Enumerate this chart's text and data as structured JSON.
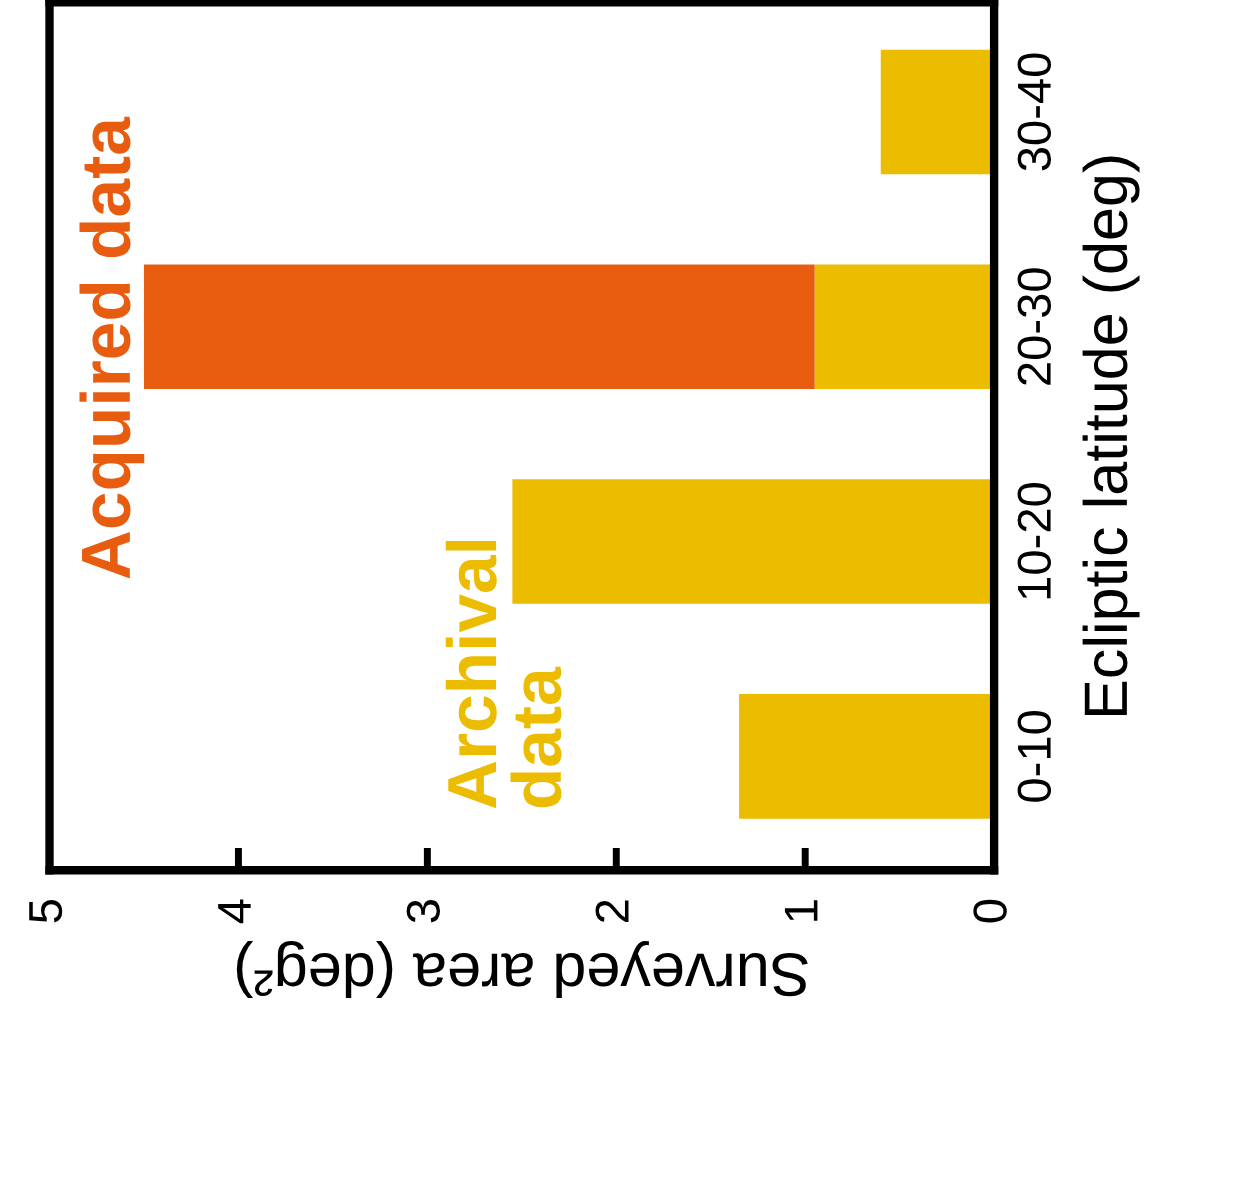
{
  "chart_data": {
    "type": "bar",
    "orientation": "horizontal",
    "stacked": true,
    "xlabel": "Surveyed area (deg²)",
    "ylabel": "Ecliptic latitude (deg)",
    "categories": [
      "30-40",
      "20-30",
      "10-20",
      "0-10"
    ],
    "series": [
      {
        "name": "Archival\ndata",
        "color": "#ecbc00",
        "values": [
          0.6,
          0.95,
          2.55,
          1.35
        ]
      },
      {
        "name": "Acquired data",
        "color": "#e85c10",
        "values": [
          0,
          3.55,
          0,
          0
        ]
      }
    ],
    "xlim": [
      5,
      0
    ],
    "xticks": [
      5,
      4,
      3,
      2,
      1,
      0
    ],
    "grid": false,
    "legend": false
  }
}
